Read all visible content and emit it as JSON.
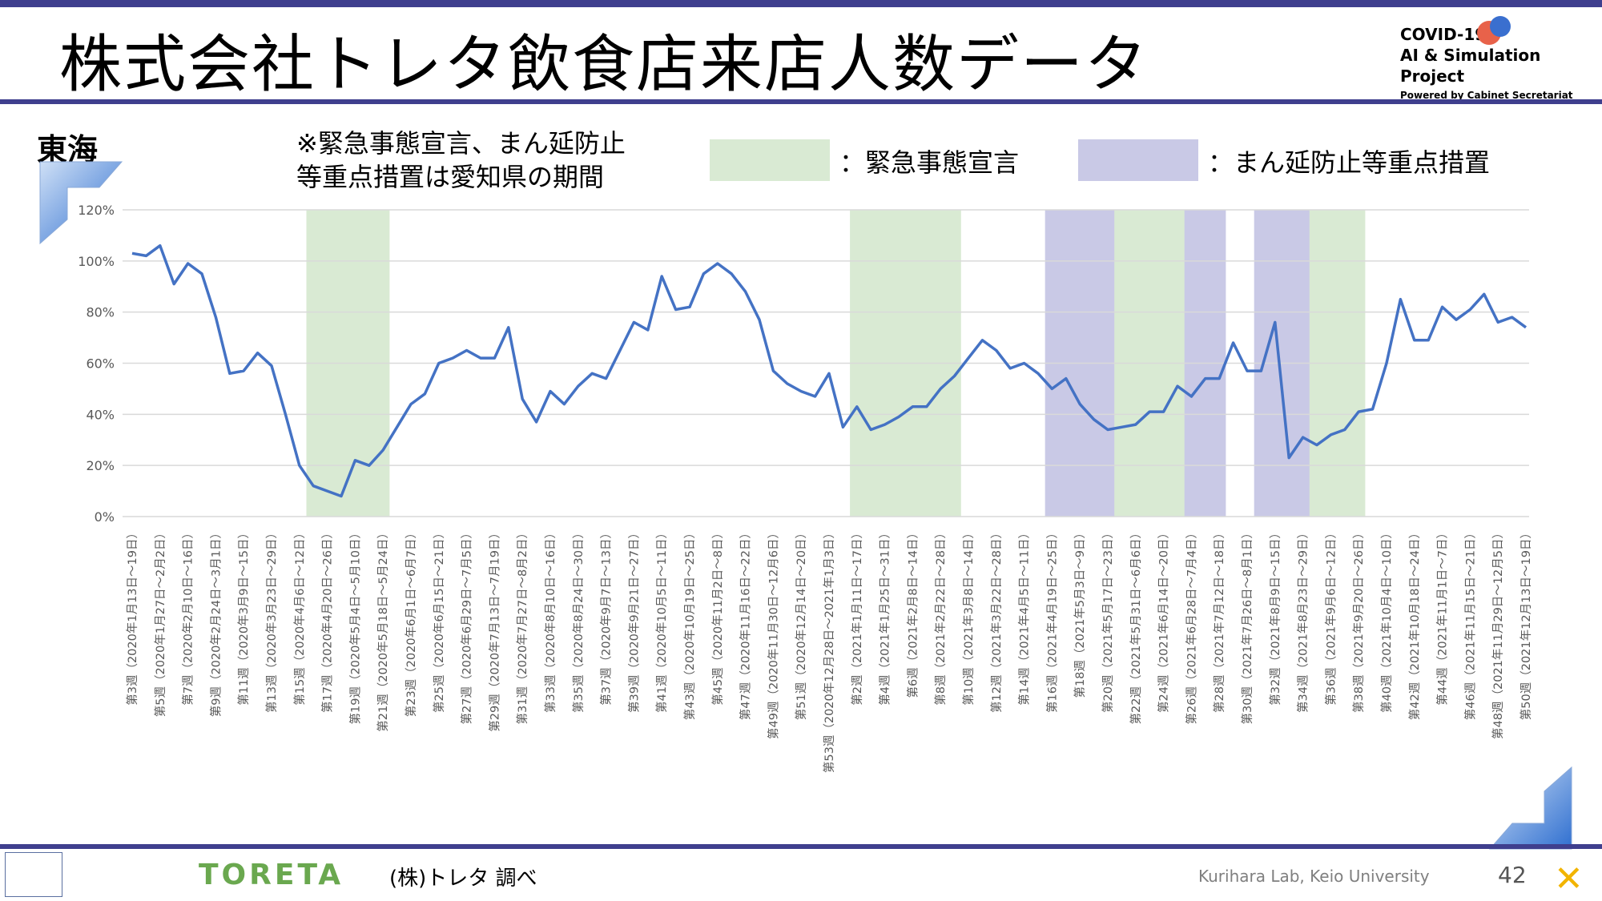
{
  "header": {
    "title": "株式会社トレタ飲食店来店人数データ",
    "project_line1": "COVID-19",
    "project_line2": "AI & Simulation Project",
    "project_line3": "Powered by Cabinet Secretariat"
  },
  "region": "東海",
  "note": [
    "※緊急事態宣言、まん延防止",
    "等重点措置は愛知県の期間"
  ],
  "legend": [
    {
      "label": "：緊急事態宣言",
      "color": "#d9ead3"
    },
    {
      "label": "：まん延防止等重点措置",
      "color": "#c9c9e6"
    }
  ],
  "footer": {
    "brand": "TORETA",
    "source": "(株)トレタ 調べ",
    "lab": "Kurihara Lab, Keio University",
    "page": "42"
  },
  "colors": {
    "accent": "#3f3f8e",
    "line": "#4472c4",
    "emergency": "#d9ead3",
    "manen": "#c9c9e6"
  },
  "chart_data": {
    "type": "line",
    "ylim": [
      0,
      120
    ],
    "yticks": [
      "0%",
      "20%",
      "40%",
      "60%",
      "80%",
      "100%",
      "120%"
    ],
    "grid": true,
    "x_labels": [
      "第3週（2020年1月13日～19日）",
      "第5週（2020年1月27日～2月2日）",
      "第7週（2020年2月10日～16日）",
      "第9週（2020年2月24日～3月1日）",
      "第11週（2020年3月9日～15日）",
      "第13週（2020年3月23日～29日）",
      "第15週（2020年4月6日～12日）",
      "第17週（2020年4月20日～26日）",
      "第19週（2020年5月4日～5月10日）",
      "第21週（2020年5月18日～5月24日）",
      "第23週（2020年6月1日～6月7日）",
      "第25週（2020年6月15日～21日）",
      "第27週（2020年6月29日～7月5日）",
      "第29週（2020年7月13日～7月19日）",
      "第31週（2020年7月27日～8月2日）",
      "第33週（2020年8月10日～16日）",
      "第35週（2020年8月24日～30日）",
      "第37週（2020年9月7日～13日）",
      "第39週（2020年9月21日～27日）",
      "第41週（2020年10月5日～11日）",
      "第43週（2020年10月19日～25日）",
      "第45週（2020年11月2日～8日）",
      "第47週（2020年11月16日～22日）",
      "第49週（2020年11月30日～12月6日）",
      "第51週（2020年12月14日～20日）",
      "第53週（2020年12月28日～2021年1月3日）",
      "第2週（2021年1月11日～17日）",
      "第4週（2021年1月25日～31日）",
      "第6週（2021年2月8日～14日）",
      "第8週（2021年2月22日～28日）",
      "第10週（2021年3月8日～14日）",
      "第12週（2021年3月22日～28日）",
      "第14週（2021年4月5日～11日）",
      "第16週（2021年4月19日～25日）",
      "第18週（2021年5月3日～9日）",
      "第20週（2021年5月17日～23日）",
      "第22週（2021年5月31日～6月6日）",
      "第24週（2021年6月14日～20日）",
      "第26週（2021年6月28日～7月4日）",
      "第28週（2021年7月12日～18日）",
      "第30週（2021年7月26日～8月1日）",
      "第32週（2021年8月9日～15日）",
      "第34週（2021年8月23日～29日）",
      "第36週（2021年9月6日～12日）",
      "第38週（2021年9月20日～26日）",
      "第40週（2021年10月4日～10日）",
      "第42週（2021年10月18日～24日）",
      "第44週（2021年11月1日～7日）",
      "第46週（2021年11月15日～21日）",
      "第48週（2021年11月29日～12月5日）",
      "第50週（2021年12月13日～19日）"
    ],
    "values": [
      103,
      102,
      106,
      91,
      99,
      95,
      78,
      56,
      57,
      64,
      59,
      40,
      20,
      12,
      10,
      8,
      22,
      20,
      26,
      35,
      44,
      48,
      60,
      62,
      65,
      62,
      62,
      74,
      46,
      37,
      49,
      44,
      51,
      56,
      54,
      65,
      76,
      73,
      94,
      81,
      82,
      95,
      99,
      95,
      88,
      77,
      57,
      52,
      49,
      47,
      56,
      35,
      43,
      34,
      36,
      39,
      43,
      43,
      50,
      55,
      62,
      69,
      65,
      58,
      60,
      56,
      50,
      54,
      44,
      38,
      34,
      35,
      36,
      41,
      41,
      51,
      47,
      54,
      54,
      68,
      57,
      57,
      76,
      23,
      31,
      28,
      32,
      34,
      41,
      42,
      60,
      85,
      69,
      69,
      82,
      77,
      81,
      87,
      76,
      78,
      74
    ],
    "emergency_weeks": [
      [
        13,
        18
      ],
      [
        52,
        59
      ],
      [
        70,
        76
      ],
      [
        84,
        88
      ]
    ],
    "manen_weeks": [
      [
        66,
        70
      ],
      [
        76,
        78
      ],
      [
        81,
        84
      ]
    ]
  }
}
